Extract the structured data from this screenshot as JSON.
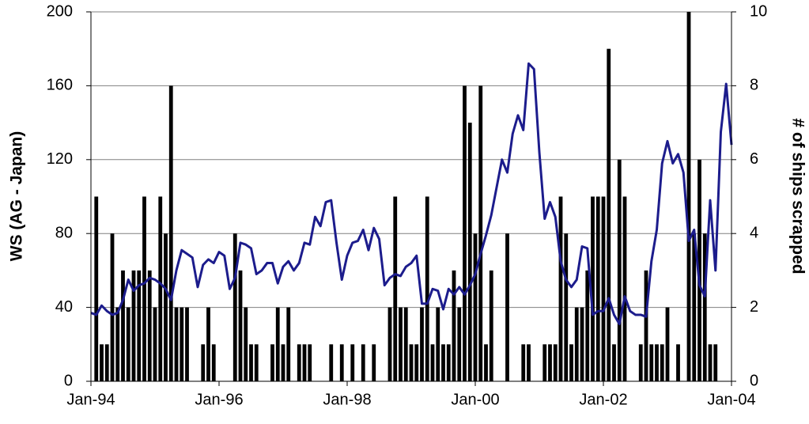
{
  "chart_data": {
    "type": "bar_line",
    "y_label": "WS (AG - Japan)",
    "y2_label": "# of ships scrapped",
    "categories": [
      "Jan-94",
      null,
      null,
      null,
      null,
      null,
      null,
      null,
      null,
      null,
      null,
      null,
      null,
      null,
      null,
      null,
      null,
      null,
      null,
      null,
      null,
      null,
      null,
      null,
      "Jan-96",
      null,
      null,
      null,
      null,
      null,
      null,
      null,
      null,
      null,
      null,
      null,
      null,
      null,
      null,
      null,
      null,
      null,
      null,
      null,
      null,
      null,
      null,
      null,
      "Jan-98",
      null,
      null,
      null,
      null,
      null,
      null,
      null,
      null,
      null,
      null,
      null,
      null,
      null,
      null,
      null,
      null,
      null,
      null,
      null,
      null,
      null,
      null,
      null,
      "Jan-00",
      null,
      null,
      null,
      null,
      null,
      null,
      null,
      null,
      null,
      null,
      null,
      null,
      null,
      null,
      null,
      null,
      null,
      null,
      null,
      null,
      null,
      null,
      null,
      "Jan-02",
      null,
      null,
      null,
      null,
      null,
      null,
      null,
      null,
      null,
      null,
      null,
      null,
      null,
      null,
      null,
      null,
      null,
      null,
      null,
      null,
      null,
      null,
      null,
      "Jan-04"
    ],
    "series": [
      {
        "type": "bar",
        "axis": "y2",
        "color": "#000000",
        "values": [
          0,
          5,
          1,
          1,
          4,
          2,
          3,
          2,
          3,
          3,
          5,
          3,
          2,
          5,
          4,
          8,
          2,
          2,
          2,
          0,
          0,
          1,
          2,
          1,
          0,
          0,
          0,
          4,
          3,
          2,
          1,
          1,
          0,
          0,
          1,
          2,
          1,
          2,
          0,
          1,
          1,
          1,
          0,
          0,
          0,
          1,
          0,
          1,
          0,
          1,
          0,
          1,
          0,
          1,
          0,
          0,
          2,
          5,
          2,
          2,
          1,
          1,
          2,
          5,
          1,
          2,
          1,
          1,
          3,
          2,
          8,
          7,
          4,
          8,
          1,
          3,
          0,
          0,
          4,
          0,
          0,
          1,
          1,
          0,
          0,
          1,
          1,
          1,
          5,
          4,
          1,
          2,
          2,
          3,
          5,
          5,
          5,
          9,
          1,
          6,
          5,
          0,
          0,
          1,
          3,
          1,
          1,
          1,
          2,
          0,
          1,
          0,
          10,
          4,
          6,
          4,
          1,
          1,
          0,
          0,
          0
        ]
      },
      {
        "type": "line",
        "color": "#1c1c8c",
        "values": [
          37,
          36,
          41,
          38,
          36,
          37,
          44,
          55,
          49,
          52,
          53,
          56,
          55,
          53,
          50,
          44,
          60,
          71,
          69,
          67,
          51,
          63,
          66,
          64,
          70,
          68,
          50,
          56,
          75,
          74,
          72,
          58,
          60,
          64,
          64,
          53,
          62,
          65,
          60,
          64,
          75,
          74,
          89,
          84,
          97,
          98,
          75,
          55,
          68,
          75,
          76,
          82,
          71,
          83,
          77,
          52,
          56,
          58,
          57,
          62,
          64,
          68,
          42,
          42,
          50,
          49,
          39,
          50,
          47,
          51,
          47,
          52,
          58,
          69,
          79,
          90,
          105,
          120,
          113,
          134,
          144,
          136,
          172,
          169,
          124,
          88,
          97,
          89,
          65,
          55,
          51,
          55,
          73,
          72,
          36,
          38,
          38,
          45,
          36,
          31,
          46,
          38,
          36,
          36,
          35,
          65,
          82,
          118,
          130,
          118,
          123,
          113,
          76,
          82,
          52,
          46,
          98,
          60,
          135,
          161,
          128
        ]
      }
    ],
    "ylim": [
      0,
      200
    ],
    "yticks": [
      0,
      40,
      80,
      120,
      160,
      200
    ],
    "y2lim": [
      0,
      10
    ],
    "y2ticks": [
      0,
      2,
      4,
      6,
      8,
      10
    ],
    "grid": true
  }
}
